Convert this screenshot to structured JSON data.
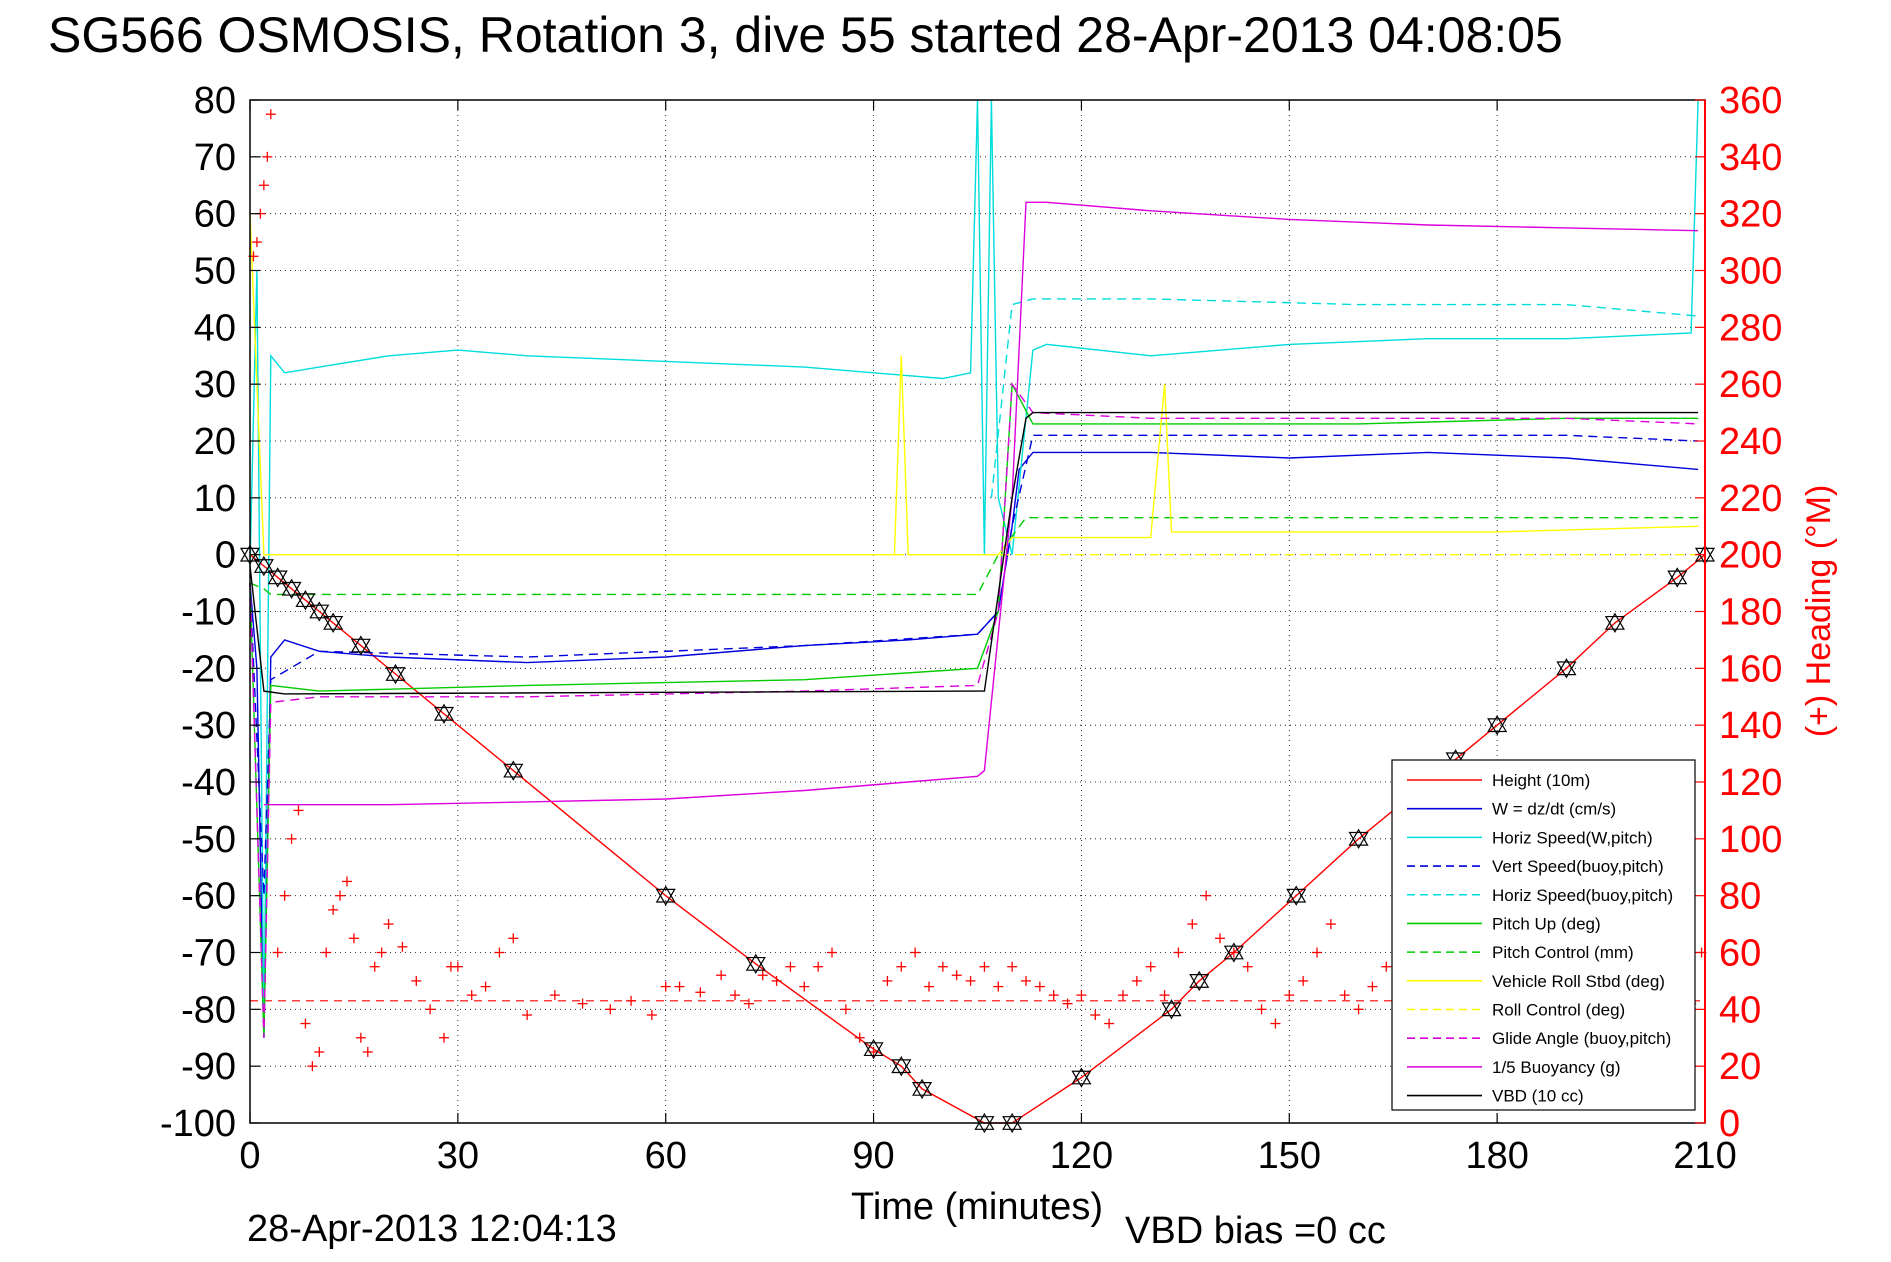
{
  "title": "SG566 OSMOSIS, Rotation 3, dive 55 started 28-Apr-2013 04:08:05",
  "footer": {
    "date": "28-Apr-2013 12:04:13",
    "vbd_bias": "VBD bias =0 cc"
  },
  "chart_data": {
    "type": "line",
    "title": "SG566 OSMOSIS, Rotation 3, dive 55 started 28-Apr-2013 04:08:05",
    "xlabel": "Time (minutes)",
    "ylabel": "",
    "y2label": "(+) Heading (°M)",
    "xlim": [
      0,
      210
    ],
    "ylim": [
      -100,
      80
    ],
    "y2lim": [
      0,
      360
    ],
    "xticks": [
      0,
      30,
      60,
      90,
      120,
      150,
      180,
      210
    ],
    "yticks": [
      80,
      70,
      60,
      50,
      40,
      30,
      20,
      10,
      0,
      -10,
      -20,
      -30,
      -40,
      -50,
      -60,
      -70,
      -80,
      -90,
      -100
    ],
    "y2ticks": [
      360,
      340,
      320,
      300,
      280,
      260,
      240,
      220,
      200,
      180,
      160,
      140,
      120,
      100,
      80,
      60,
      40,
      20,
      0
    ],
    "grid": true,
    "legend_position": "bottom-right",
    "colors": {
      "heading": "#ff0000",
      "axis": "#000000",
      "right_axis": "#ff0000"
    },
    "series": [
      {
        "name": "Height (10m)",
        "color": "#ff0000",
        "dash": "solid",
        "markers": "triangle",
        "x": [
          0,
          2,
          4,
          6,
          8,
          10,
          12,
          16,
          21,
          28,
          38,
          60,
          73,
          90,
          94,
          97,
          106,
          110,
          120,
          133,
          137,
          142,
          151,
          160,
          174,
          180,
          190,
          197,
          206,
          210
        ],
        "y": [
          0,
          -2,
          -4,
          -6,
          -8,
          -10,
          -12,
          -16,
          -21,
          -28,
          -38,
          -60,
          -72,
          -87,
          -90,
          -94,
          -100,
          -100,
          -92,
          -80,
          -75,
          -70,
          -60,
          -50,
          -36,
          -30,
          -20,
          -12,
          -4,
          0
        ]
      },
      {
        "name": "W = dz/dt (cm/s)",
        "color": "#0000dd",
        "dash": "solid",
        "x": [
          0,
          1,
          2,
          3,
          5,
          10,
          20,
          40,
          60,
          80,
          95,
          105,
          108,
          110,
          111,
          113,
          115,
          130,
          150,
          170,
          190,
          209
        ],
        "y": [
          -5,
          -20,
          -85,
          -18,
          -15,
          -17,
          -18,
          -19,
          -18,
          -16,
          -15,
          -14,
          -10,
          5,
          15,
          18,
          18,
          18,
          17,
          18,
          17,
          15
        ]
      },
      {
        "name": "Horiz Speed(W,pitch)",
        "color": "#00dddd",
        "dash": "solid",
        "x": [
          0,
          1,
          2,
          3,
          5,
          10,
          20,
          30,
          40,
          60,
          80,
          100,
          104,
          105,
          106,
          107,
          108,
          110,
          113,
          115,
          130,
          150,
          170,
          190,
          208,
          209
        ],
        "y": [
          -2,
          50,
          -85,
          35,
          32,
          33,
          35,
          36,
          35,
          34,
          33,
          31,
          32,
          80,
          0,
          80,
          10,
          0,
          36,
          37,
          35,
          37,
          38,
          38,
          39,
          80
        ]
      },
      {
        "name": "Vert Speed(buoy,pitch)",
        "color": "#0000dd",
        "dash": "dashed",
        "x": [
          0,
          2,
          3,
          10,
          40,
          80,
          105,
          108,
          110,
          113,
          130,
          160,
          190,
          209
        ],
        "y": [
          -5,
          -60,
          -22,
          -17,
          -18,
          -16,
          -14,
          -10,
          5,
          21,
          21,
          21,
          21,
          20
        ]
      },
      {
        "name": "Horiz Speed(buoy,pitch)",
        "color": "#00dddd",
        "dash": "dashed",
        "x": [
          107,
          110,
          113,
          130,
          160,
          190,
          209
        ],
        "y": [
          10,
          44,
          45,
          45,
          44,
          44,
          42
        ]
      },
      {
        "name": "Pitch Up (deg)",
        "color": "#00cc00",
        "dash": "solid",
        "x": [
          0,
          2,
          3,
          10,
          40,
          80,
          105,
          108,
          110,
          113,
          130,
          160,
          190,
          209
        ],
        "y": [
          -5,
          -85,
          -23,
          -24,
          -23,
          -22,
          -20,
          -10,
          30,
          23,
          23,
          23,
          24,
          24
        ]
      },
      {
        "name": "Pitch Control (mm)",
        "color": "#00cc00",
        "dash": "dashed",
        "x": [
          0,
          2,
          3,
          10,
          40,
          80,
          105,
          108,
          112,
          130,
          160,
          190,
          209
        ],
        "y": [
          -5,
          -6,
          -7,
          -7,
          -7,
          -7,
          -7,
          0,
          6.5,
          6.5,
          6.5,
          6.5,
          6.5
        ]
      },
      {
        "name": "Vehicle Roll Stbd (deg)",
        "color": "#ffff00",
        "dash": "solid",
        "x": [
          0,
          2,
          4,
          10,
          38,
          60,
          93,
          94,
          95,
          100,
          108,
          110,
          130,
          132,
          133,
          150,
          180,
          209
        ],
        "y": [
          60,
          0,
          0,
          0,
          0,
          0,
          0,
          35,
          0,
          0,
          0,
          3,
          3,
          30,
          4,
          4,
          4,
          5
        ]
      },
      {
        "name": "Roll Control (deg)",
        "color": "#ffff00",
        "dash": "dashed",
        "x": [
          0,
          2,
          4,
          30,
          60,
          100,
          108,
          112,
          150,
          180,
          209
        ],
        "y": [
          0,
          0,
          0,
          0,
          0,
          0,
          0,
          0,
          0,
          0,
          0
        ]
      },
      {
        "name": "Glide Angle (buoy,pitch)",
        "color": "#dd00dd",
        "dash": "dashed",
        "x": [
          0,
          2,
          3,
          10,
          40,
          80,
          105,
          108,
          110,
          113,
          130,
          160,
          190,
          209
        ],
        "y": [
          -5,
          -85,
          -26,
          -25,
          -25,
          -24,
          -23,
          -10,
          30,
          25,
          24,
          24,
          24,
          23
        ]
      },
      {
        "name": "1/5 Buoyancy (g)",
        "color": "#dd00dd",
        "dash": "solid",
        "x": [
          2,
          20,
          40,
          60,
          80,
          95,
          105,
          106,
          110,
          112,
          115,
          130,
          150,
          170,
          190,
          209
        ],
        "y": [
          -44,
          -44,
          -43.5,
          -43,
          -41.5,
          -40,
          -39,
          -38,
          10,
          62,
          62,
          60.5,
          59,
          58,
          57.5,
          57
        ]
      },
      {
        "name": "VBD (10 cc)",
        "color": "#000000",
        "dash": "solid",
        "x": [
          0,
          2,
          5,
          105,
          106,
          110,
          112,
          113,
          130,
          160,
          190,
          209
        ],
        "y": [
          -2,
          -24,
          -24.5,
          -24,
          -24,
          10,
          24,
          25,
          25,
          25,
          25,
          25
        ]
      }
    ],
    "heading_series": {
      "axis": "right",
      "marker": "+",
      "color": "#ff0000",
      "x": [
        0.5,
        1,
        1.5,
        2,
        2.5,
        3,
        4,
        5,
        6,
        7,
        8,
        9,
        10,
        11,
        12,
        13,
        14,
        15,
        16,
        17,
        18,
        19,
        20,
        22,
        24,
        26,
        28,
        29,
        30,
        32,
        34,
        36,
        38,
        40,
        44,
        48,
        52,
        55,
        58,
        60,
        62,
        65,
        68,
        70,
        72,
        74,
        76,
        78,
        80,
        82,
        84,
        86,
        88,
        90,
        92,
        94,
        96,
        98,
        100,
        102,
        104,
        106,
        108,
        110,
        112,
        114,
        116,
        118,
        120,
        122,
        124,
        126,
        128,
        130,
        132,
        134,
        136,
        138,
        140,
        142,
        144,
        146,
        148,
        150,
        152,
        154,
        156,
        158,
        160,
        162,
        164,
        166,
        168,
        170,
        172,
        174,
        176,
        178,
        180,
        182,
        184,
        186,
        188,
        190,
        192,
        194,
        196,
        198,
        200,
        202,
        204,
        206,
        208,
        209.5
      ],
      "y": [
        305,
        310,
        320,
        330,
        340,
        355,
        60,
        80,
        100,
        110,
        35,
        20,
        25,
        60,
        75,
        80,
        85,
        65,
        30,
        25,
        55,
        60,
        70,
        62,
        50,
        40,
        30,
        55,
        55,
        45,
        48,
        60,
        65,
        38,
        45,
        42,
        40,
        43,
        38,
        48,
        48,
        46,
        52,
        45,
        42,
        52,
        50,
        55,
        48,
        55,
        60,
        40,
        30,
        25,
        50,
        55,
        60,
        48,
        55,
        52,
        50,
        55,
        48,
        55,
        50,
        48,
        45,
        42,
        45,
        38,
        35,
        45,
        50,
        55,
        45,
        60,
        70,
        80,
        65,
        60,
        55,
        40,
        35,
        45,
        50,
        60,
        70,
        45,
        40,
        48,
        55,
        60,
        70,
        62,
        50,
        40,
        35,
        50,
        55,
        60,
        70,
        78,
        85,
        88,
        60,
        50,
        55,
        45,
        62,
        68,
        70,
        50,
        42,
        60
      ]
    },
    "reference_lines": [
      {
        "axis": "right",
        "y": 43,
        "color": "#ff0000",
        "dash": "dashed"
      }
    ]
  }
}
